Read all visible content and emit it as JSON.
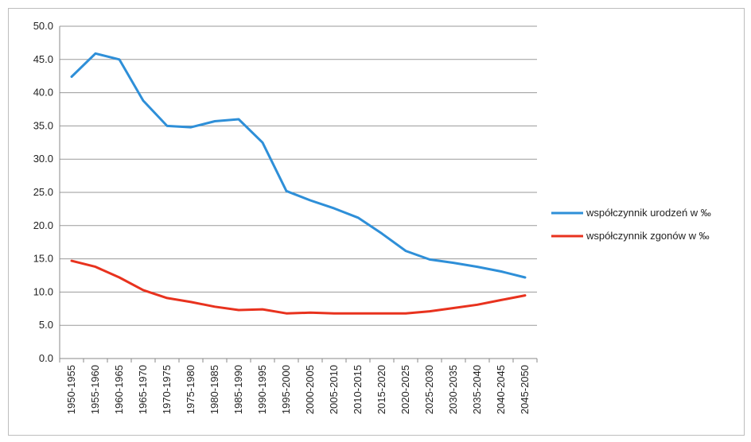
{
  "chart_data": {
    "type": "line",
    "categories": [
      "1950-1955",
      "1955-1960",
      "1960-1965",
      "1965-1970",
      "1970-1975",
      "1975-1980",
      "1980-1985",
      "1985-1990",
      "1990-1995",
      "1995-2000",
      "2000-2005",
      "2005-2010",
      "2010-2015",
      "2015-2020",
      "2020-2025",
      "2025-2030",
      "2030-2035",
      "2035-2040",
      "2040-2045",
      "2045-2050"
    ],
    "yticks": [
      "0.0",
      "5.0",
      "10.0",
      "15.0",
      "20.0",
      "25.0",
      "30.0",
      "35.0",
      "40.0",
      "45.0",
      "50.0"
    ],
    "ylim": [
      0,
      50
    ],
    "grid": true,
    "legend_position": "right",
    "series": [
      {
        "name": "współczynnik urodzeń w ‰",
        "color": "#2e8fd8",
        "values": [
          42.4,
          45.9,
          45.0,
          38.8,
          35.0,
          34.8,
          35.7,
          36.0,
          32.5,
          25.2,
          23.8,
          22.6,
          21.2,
          18.8,
          16.2,
          14.9,
          14.4,
          13.8,
          13.1,
          12.2
        ]
      },
      {
        "name": "współczynnik zgonów w ‰",
        "color": "#e8321e",
        "values": [
          14.7,
          13.8,
          12.2,
          10.3,
          9.1,
          8.5,
          7.8,
          7.3,
          7.4,
          6.8,
          6.9,
          6.8,
          6.8,
          6.8,
          6.8,
          7.1,
          7.6,
          8.1,
          8.8,
          9.5
        ]
      }
    ]
  }
}
